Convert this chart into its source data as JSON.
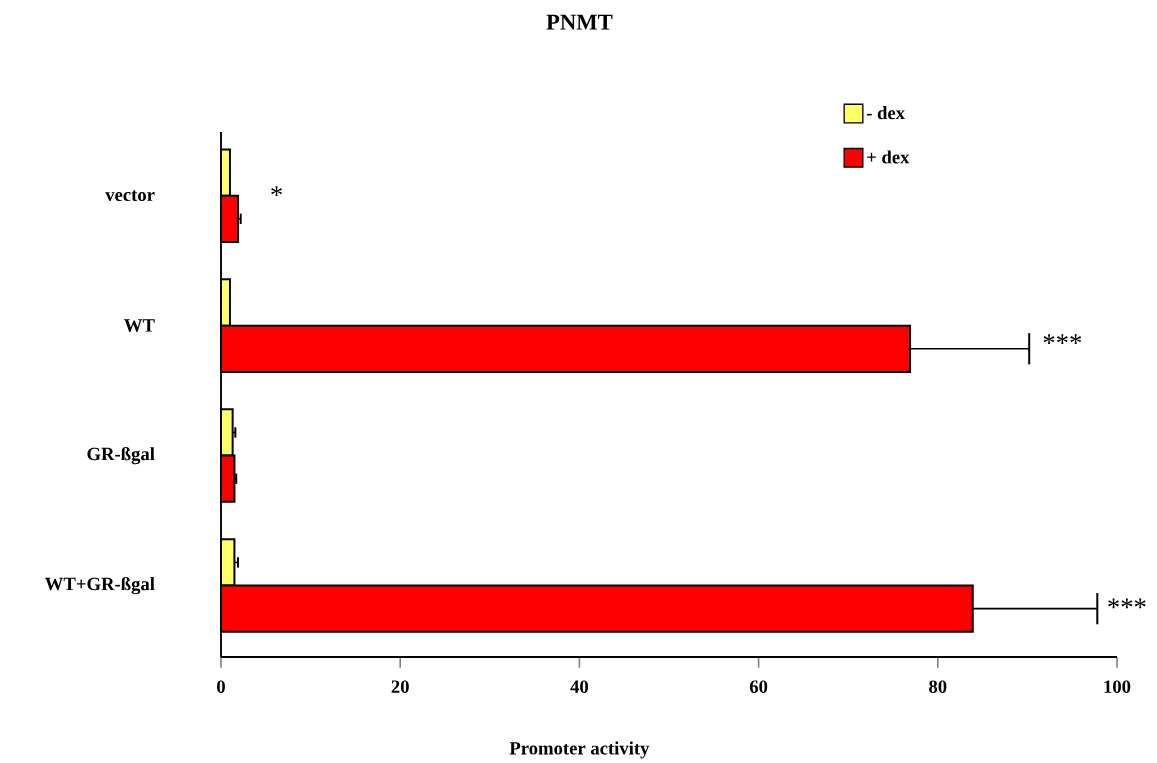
{
  "chart_data": {
    "type": "bar",
    "orientation": "horizontal",
    "title": "PNMT",
    "xlabel": "Promoter activity",
    "categories": [
      "vector",
      "WT",
      "GR-ßgal",
      "WT+GR-ßgal"
    ],
    "series": [
      {
        "name": "- dex",
        "color": "#ffff66",
        "values": [
          1.0,
          1.0,
          1.3,
          1.5
        ],
        "errors": [
          null,
          null,
          0.3,
          0.4
        ]
      },
      {
        "name": "+ dex",
        "color": "#ff0000",
        "values": [
          1.9,
          76.9,
          1.5,
          83.9
        ],
        "errors": [
          0.3,
          13.3,
          0.2,
          13.9
        ]
      }
    ],
    "xlim": [
      0,
      100
    ],
    "xticks": [
      0,
      20,
      40,
      60,
      80,
      100
    ],
    "grid": false,
    "legend": "top right",
    "annotations": [
      "*",
      "***",
      "***"
    ]
  }
}
